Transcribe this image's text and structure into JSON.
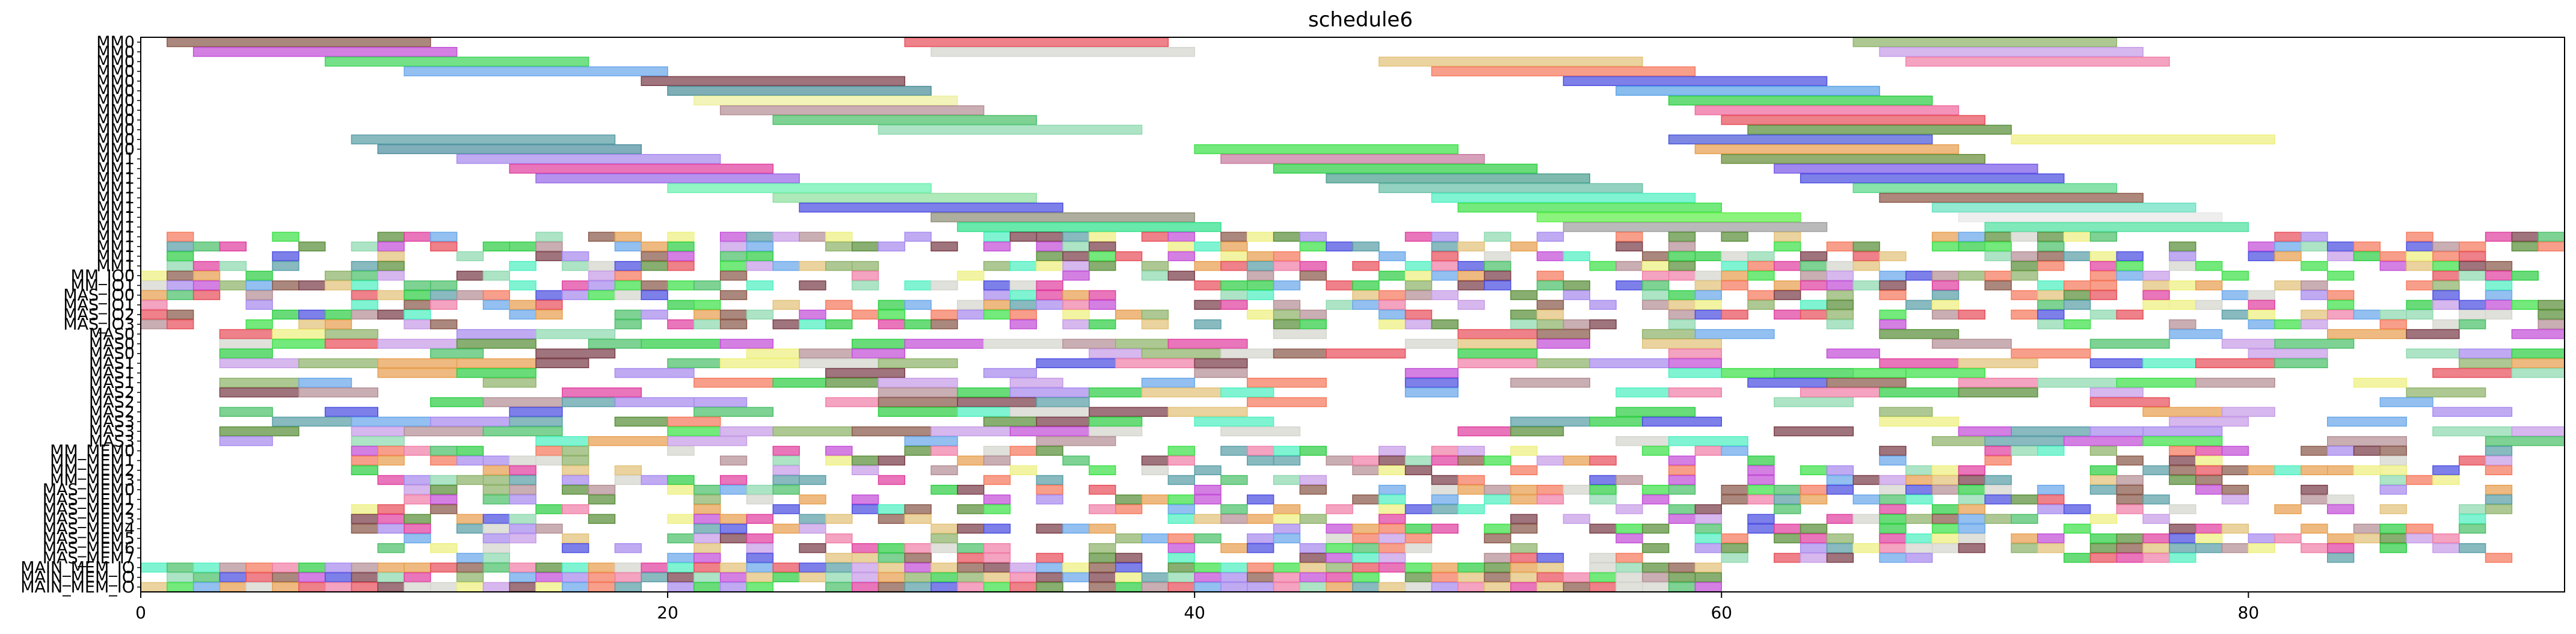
{
  "chart_data": {
    "type": "gantt",
    "title": "schedule6",
    "xlabel": "",
    "ylabel": "",
    "xlim": [
      0,
      92
    ],
    "x_ticks": [
      0,
      20,
      40,
      60,
      80
    ],
    "grid": false,
    "legend": "none",
    "row_labels": [
      "MM0",
      "MM0",
      "MM0",
      "MM0",
      "MM0",
      "MM0",
      "MM0",
      "MM0",
      "MM0",
      "MM0",
      "MM0",
      "MM0",
      "MM1",
      "MM1",
      "MM1",
      "MM1",
      "MM1",
      "MM1",
      "MM1",
      "MM1",
      "MM1",
      "MM1",
      "MM1",
      "MM1",
      "MM_IO0",
      "MM_IO1",
      "MAS_IO0",
      "MAS_IO1",
      "MAS_IO2",
      "MAS_IO3",
      "MAS0",
      "MAS0",
      "MAS0",
      "MAS1",
      "MAS1",
      "MAS1",
      "MAS2",
      "MAS2",
      "MAS2",
      "MAS3",
      "MAS3",
      "MAS3",
      "MM_MEM0",
      "MM_MEM1",
      "MM_MEM2",
      "MM_MEM3",
      "MAS_MEM0",
      "MAS_MEM1",
      "MAS_MEM2",
      "MAS_MEM3",
      "MAS_MEM4",
      "MAS_MEM5",
      "MAS_MEM6",
      "MAS_MEM7",
      "MAIN_MEM_IO",
      "MAIN_MEM_IO",
      "MAIN_MEM_IO"
    ],
    "tasks": [
      {
        "row": 0,
        "start": 1,
        "end": 11,
        "color": "#8b5a4b"
      },
      {
        "row": 0,
        "start": 29,
        "end": 39,
        "color": "#e8505b"
      },
      {
        "row": 0,
        "start": 65,
        "end": 75,
        "color": "#8fb36b"
      },
      {
        "row": 1,
        "start": 2,
        "end": 12,
        "color": "#c34fd8"
      },
      {
        "row": 1,
        "start": 30,
        "end": 40,
        "color": "#d5d5cf"
      },
      {
        "row": 1,
        "start": 66,
        "end": 76,
        "color": "#c79ce8"
      },
      {
        "row": 2,
        "start": 7,
        "end": 17,
        "color": "#3fd45a"
      },
      {
        "row": 2,
        "start": 47,
        "end": 57,
        "color": "#e3c27a"
      },
      {
        "row": 2,
        "start": 67,
        "end": 77,
        "color": "#f07fa8"
      },
      {
        "row": 3,
        "start": 10,
        "end": 20,
        "color": "#6aa8ea"
      },
      {
        "row": 3,
        "start": 49,
        "end": 59,
        "color": "#f57a5e"
      },
      {
        "row": 4,
        "start": 19,
        "end": 29,
        "color": "#7a3f4a"
      },
      {
        "row": 4,
        "start": 54,
        "end": 64,
        "color": "#4c4fe0"
      },
      {
        "row": 5,
        "start": 20,
        "end": 30,
        "color": "#4d8f9a"
      },
      {
        "row": 5,
        "start": 56,
        "end": 66,
        "color": "#5aa3e8"
      },
      {
        "row": 6,
        "start": 21,
        "end": 31,
        "color": "#eef0a0"
      },
      {
        "row": 6,
        "start": 58,
        "end": 68,
        "color": "#2fcf45"
      },
      {
        "row": 7,
        "start": 22,
        "end": 32,
        "color": "#b48f95"
      },
      {
        "row": 7,
        "start": 59,
        "end": 69,
        "color": "#f06aa0"
      },
      {
        "row": 8,
        "start": 24,
        "end": 34,
        "color": "#4cc06a"
      },
      {
        "row": 8,
        "start": 60,
        "end": 70,
        "color": "#e8505b"
      },
      {
        "row": 9,
        "start": 28,
        "end": 38,
        "color": "#8fd9b0"
      },
      {
        "row": 9,
        "start": 61,
        "end": 71,
        "color": "#5a8f3a"
      },
      {
        "row": 10,
        "start": 8,
        "end": 18,
        "color": "#5a9fa8"
      },
      {
        "row": 10,
        "start": 58,
        "end": 68,
        "color": "#4c5ad8"
      },
      {
        "row": 10,
        "start": 71,
        "end": 81,
        "color": "#eef080"
      },
      {
        "row": 11,
        "start": 9,
        "end": 19,
        "color": "#4f8fa0"
      },
      {
        "row": 11,
        "start": 40,
        "end": 50,
        "color": "#3ee04a"
      },
      {
        "row": 11,
        "start": 59,
        "end": 69,
        "color": "#e8a050"
      },
      {
        "row": 12,
        "start": 12,
        "end": 22,
        "color": "#a78bef"
      },
      {
        "row": 12,
        "start": 41,
        "end": 51,
        "color": "#c77ba0"
      },
      {
        "row": 12,
        "start": 60,
        "end": 70,
        "color": "#6a8f3a"
      },
      {
        "row": 13,
        "start": 14,
        "end": 24,
        "color": "#e040a0"
      },
      {
        "row": 13,
        "start": 43,
        "end": 53,
        "color": "#2fcf45"
      },
      {
        "row": 13,
        "start": 62,
        "end": 72,
        "color": "#7a5ae8"
      },
      {
        "row": 14,
        "start": 15,
        "end": 25,
        "color": "#9a6ae8"
      },
      {
        "row": 14,
        "start": 45,
        "end": 55,
        "color": "#4c9f8f"
      },
      {
        "row": 14,
        "start": 63,
        "end": 73,
        "color": "#4c4fe0"
      },
      {
        "row": 15,
        "start": 20,
        "end": 30,
        "color": "#6af0b0"
      },
      {
        "row": 15,
        "start": 47,
        "end": 57,
        "color": "#6ac0a8"
      },
      {
        "row": 15,
        "start": 65,
        "end": 75,
        "color": "#5ad88a"
      },
      {
        "row": 16,
        "start": 24,
        "end": 34,
        "color": "#8fe0a0"
      },
      {
        "row": 16,
        "start": 49,
        "end": 59,
        "color": "#4ff0c0"
      },
      {
        "row": 16,
        "start": 66,
        "end": 76,
        "color": "#8f5a4a"
      },
      {
        "row": 17,
        "start": 25,
        "end": 35,
        "color": "#4c4fe0"
      },
      {
        "row": 17,
        "start": 50,
        "end": 60,
        "color": "#3ee04a"
      },
      {
        "row": 17,
        "start": 68,
        "end": 78,
        "color": "#6ae0c0"
      },
      {
        "row": 18,
        "start": 30,
        "end": 40,
        "color": "#8f8f7a"
      },
      {
        "row": 18,
        "start": 53,
        "end": 63,
        "color": "#5ef04a"
      },
      {
        "row": 18,
        "start": 69,
        "end": 79,
        "color": "#e8e8e8"
      },
      {
        "row": 19,
        "start": 31,
        "end": 41,
        "color": "#2fe08a"
      },
      {
        "row": 19,
        "start": 54,
        "end": 64,
        "color": "#a0a0a0"
      },
      {
        "row": 19,
        "start": 70,
        "end": 80,
        "color": "#4fe0a0"
      }
    ],
    "dense_region": {
      "note": "small cells in rows 20-56",
      "rows": [
        20,
        56
      ],
      "cell_duration": 1,
      "palette": [
        "#e8505b",
        "#4c4fe0",
        "#2fcf45",
        "#c34fd8",
        "#e3c27a",
        "#6aa8ea",
        "#8b5a4b",
        "#4cc06a",
        "#f07fa8",
        "#5a9fa8",
        "#eef080",
        "#8fd9b0",
        "#a78bef",
        "#e040a0",
        "#4ff0c0",
        "#f57a5e",
        "#7a3f4a",
        "#8fb36b",
        "#b48f95",
        "#5a8f3a",
        "#d5d5cf",
        "#3ee04a",
        "#e8a050",
        "#c79ce8"
      ]
    }
  }
}
